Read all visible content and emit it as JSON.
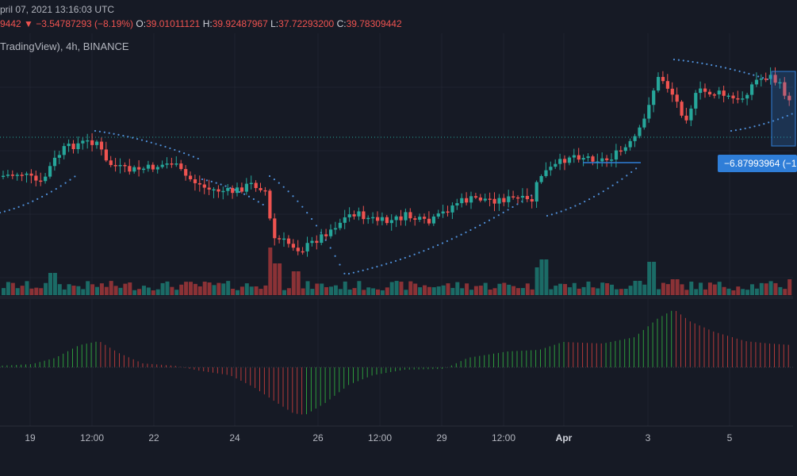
{
  "header": {
    "date_line": "pril 07, 2021 13:16:03 UTC",
    "close_partial": "9442",
    "change_arrow": "▼",
    "change": "−3.54787293 (−8.19%)",
    "o_label": "O:",
    "o_value": "39.01011121",
    "h_label": "H:",
    "h_value": "39.92487967",
    "l_label": "L:",
    "l_value": "37.72293200",
    "c_label": "C:",
    "c_value": "39.78309442",
    "source": "TradingView), 4h, BINANCE"
  },
  "measure_badge": "−6.87993964 (−1",
  "x_axis_labels": [
    {
      "label": "19",
      "emphasis": false
    },
    {
      "label": "12:00",
      "emphasis": false
    },
    {
      "label": "22",
      "emphasis": false
    },
    {
      "label": "24",
      "emphasis": false
    },
    {
      "label": "26",
      "emphasis": false
    },
    {
      "label": "12:00",
      "emphasis": false
    },
    {
      "label": "29",
      "emphasis": false
    },
    {
      "label": "12:00",
      "emphasis": false
    },
    {
      "label": "Apr",
      "emphasis": true
    },
    {
      "label": "3",
      "emphasis": false
    },
    {
      "label": "5",
      "emphasis": false
    }
  ],
  "colors": {
    "background": "#161a25",
    "up": "#26a69a",
    "down": "#ef5350",
    "volume_up": "#1b6b66",
    "volume_down": "#8b3236",
    "osc_up": "#2e9b3c",
    "osc_down": "#b23a3a",
    "sar_dots": "#4f8fd8",
    "badge": "#2f7ed8"
  },
  "chart_data": {
    "type": "candlestick",
    "interval": "4h",
    "indicators": [
      "volume",
      "parabolic SAR",
      "histogram oscillator"
    ],
    "x_labels": [
      "19",
      "12:00",
      "22",
      "24",
      "26",
      "12:00",
      "29",
      "12:00",
      "Apr",
      "3",
      "5"
    ]
  }
}
